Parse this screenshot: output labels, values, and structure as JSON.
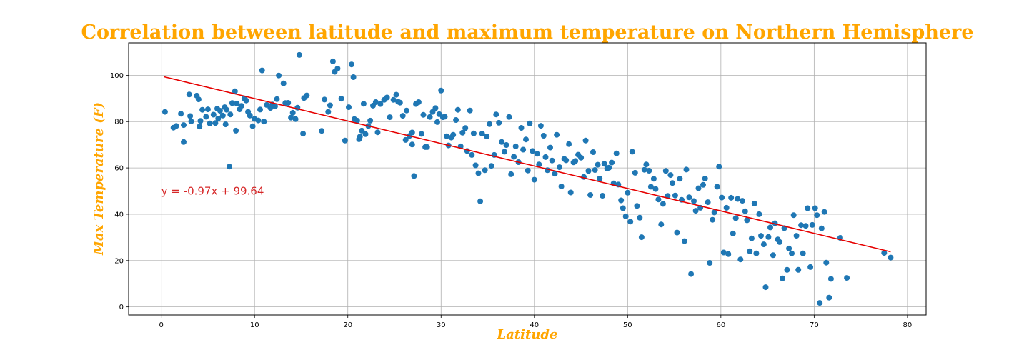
{
  "chart_data": {
    "type": "scatter",
    "title": "Correlation between latitude and maximum temperature on Northern Hemisphere",
    "xlabel": "Latitude",
    "ylabel": "Max Temperature (F)",
    "xlim": [
      -3.5,
      82
    ],
    "ylim": [
      -3.5,
      114
    ],
    "xticks": [
      0,
      10,
      20,
      30,
      40,
      50,
      60,
      70,
      80
    ],
    "yticks": [
      0,
      20,
      40,
      60,
      80,
      100
    ],
    "grid": true,
    "legend": "none",
    "regression": {
      "slope": -0.97,
      "intercept": 99.64,
      "x_range": [
        0.3,
        78.2
      ],
      "equation_label": "y = -0.97x + 99.64",
      "equation_anchor": [
        0,
        50
      ]
    },
    "colors": {
      "points": "#1f77b4",
      "line": "#e60000",
      "equation": "#d62728",
      "title": "#FFA500",
      "labels": "#FFA500"
    },
    "points": [
      [
        0.4,
        84.2
      ],
      [
        1.3,
        77.4
      ],
      [
        1.6,
        78.1
      ],
      [
        2.1,
        83.4
      ],
      [
        2.4,
        78.5
      ],
      [
        2.4,
        71.2
      ],
      [
        3.0,
        91.7
      ],
      [
        3.1,
        82.4
      ],
      [
        3.2,
        80.1
      ],
      [
        3.8,
        91.2
      ],
      [
        4.0,
        89.6
      ],
      [
        4.1,
        77.9
      ],
      [
        4.2,
        80.3
      ],
      [
        4.4,
        85.1
      ],
      [
        4.8,
        82.1
      ],
      [
        5.0,
        85.3
      ],
      [
        5.2,
        79.2
      ],
      [
        5.6,
        83.0
      ],
      [
        5.8,
        79.4
      ],
      [
        6.0,
        85.6
      ],
      [
        6.1,
        81.3
      ],
      [
        6.3,
        84.7
      ],
      [
        6.6,
        82.6
      ],
      [
        6.8,
        86.2
      ],
      [
        6.9,
        78.8
      ],
      [
        7.0,
        85.1
      ],
      [
        7.3,
        60.6
      ],
      [
        7.4,
        83.1
      ],
      [
        7.6,
        88.0
      ],
      [
        7.9,
        93.1
      ],
      [
        8.0,
        76.1
      ],
      [
        8.1,
        87.8
      ],
      [
        8.4,
        85.3
      ],
      [
        8.6,
        86.8
      ],
      [
        8.9,
        90.0
      ],
      [
        9.1,
        89.1
      ],
      [
        9.3,
        84.2
      ],
      [
        9.5,
        82.6
      ],
      [
        9.8,
        78.0
      ],
      [
        10.0,
        81.2
      ],
      [
        10.4,
        80.5
      ],
      [
        10.6,
        85.2
      ],
      [
        10.8,
        102.1
      ],
      [
        11.0,
        80.0
      ],
      [
        11.3,
        87.2
      ],
      [
        11.7,
        85.9
      ],
      [
        11.9,
        87.4
      ],
      [
        12.2,
        86.6
      ],
      [
        12.4,
        89.7
      ],
      [
        12.6,
        99.9
      ],
      [
        13.1,
        96.5
      ],
      [
        13.3,
        88.0
      ],
      [
        13.6,
        88.1
      ],
      [
        13.9,
        81.7
      ],
      [
        14.1,
        83.8
      ],
      [
        14.4,
        81.1
      ],
      [
        14.6,
        86.0
      ],
      [
        14.8,
        108.8
      ],
      [
        15.2,
        74.8
      ],
      [
        15.3,
        90.2
      ],
      [
        15.6,
        91.3
      ],
      [
        17.2,
        76.0
      ],
      [
        17.5,
        89.5
      ],
      [
        17.9,
        84.2
      ],
      [
        18.1,
        87.0
      ],
      [
        18.4,
        106.0
      ],
      [
        18.6,
        101.5
      ],
      [
        18.9,
        102.9
      ],
      [
        19.3,
        89.9
      ],
      [
        19.7,
        71.8
      ],
      [
        20.1,
        86.2
      ],
      [
        20.4,
        104.7
      ],
      [
        20.6,
        99.2
      ],
      [
        20.7,
        81.1
      ],
      [
        21.0,
        80.4
      ],
      [
        21.2,
        72.4
      ],
      [
        21.3,
        73.5
      ],
      [
        21.5,
        76.1
      ],
      [
        21.7,
        87.7
      ],
      [
        21.9,
        74.6
      ],
      [
        22.2,
        78.1
      ],
      [
        22.4,
        80.4
      ],
      [
        22.7,
        86.9
      ],
      [
        23.0,
        88.4
      ],
      [
        23.2,
        75.4
      ],
      [
        23.5,
        87.6
      ],
      [
        23.9,
        89.4
      ],
      [
        24.2,
        90.4
      ],
      [
        24.5,
        81.9
      ],
      [
        24.9,
        89.4
      ],
      [
        25.2,
        91.6
      ],
      [
        25.4,
        88.6
      ],
      [
        25.6,
        88.2
      ],
      [
        25.9,
        82.5
      ],
      [
        26.2,
        72.1
      ],
      [
        26.3,
        84.8
      ],
      [
        26.6,
        73.8
      ],
      [
        26.9,
        70.1
      ],
      [
        26.9,
        75.3
      ],
      [
        27.1,
        56.5
      ],
      [
        27.3,
        87.6
      ],
      [
        27.6,
        88.4
      ],
      [
        27.9,
        74.7
      ],
      [
        28.1,
        82.9
      ],
      [
        28.3,
        69.0
      ],
      [
        28.5,
        69.0
      ],
      [
        28.8,
        82.0
      ],
      [
        29.1,
        84.2
      ],
      [
        29.4,
        85.8
      ],
      [
        29.6,
        79.8
      ],
      [
        29.8,
        83.2
      ],
      [
        30.0,
        93.4
      ],
      [
        30.2,
        81.9
      ],
      [
        30.4,
        82.1
      ],
      [
        30.6,
        73.7
      ],
      [
        30.8,
        69.7
      ],
      [
        31.1,
        73.1
      ],
      [
        31.3,
        74.3
      ],
      [
        31.6,
        80.7
      ],
      [
        31.8,
        85.1
      ],
      [
        32.1,
        69.3
      ],
      [
        32.3,
        75.2
      ],
      [
        32.6,
        77.2
      ],
      [
        32.8,
        67.3
      ],
      [
        33.1,
        84.8
      ],
      [
        33.3,
        65.6
      ],
      [
        33.5,
        74.9
      ],
      [
        33.7,
        61.1
      ],
      [
        34.0,
        57.7
      ],
      [
        34.2,
        45.6
      ],
      [
        34.4,
        74.8
      ],
      [
        34.7,
        59.0
      ],
      [
        34.9,
        73.6
      ],
      [
        35.2,
        78.9
      ],
      [
        35.4,
        60.9
      ],
      [
        35.7,
        65.6
      ],
      [
        35.9,
        83.1
      ],
      [
        36.2,
        79.5
      ],
      [
        36.5,
        71.2
      ],
      [
        36.8,
        67.0
      ],
      [
        37.0,
        69.9
      ],
      [
        37.3,
        82.0
      ],
      [
        37.5,
        57.3
      ],
      [
        37.8,
        64.8
      ],
      [
        38.0,
        69.3
      ],
      [
        38.3,
        62.5
      ],
      [
        38.6,
        77.3
      ],
      [
        38.8,
        67.9
      ],
      [
        39.1,
        72.3
      ],
      [
        39.3,
        58.9
      ],
      [
        39.5,
        79.2
      ],
      [
        39.8,
        67.3
      ],
      [
        40.0,
        54.9
      ],
      [
        40.3,
        66.1
      ],
      [
        40.5,
        61.5
      ],
      [
        40.7,
        78.2
      ],
      [
        41.0,
        73.9
      ],
      [
        41.2,
        64.7
      ],
      [
        41.4,
        59.0
      ],
      [
        41.7,
        68.8
      ],
      [
        41.9,
        63.2
      ],
      [
        42.2,
        57.5
      ],
      [
        42.4,
        74.3
      ],
      [
        42.7,
        60.3
      ],
      [
        42.9,
        52.0
      ],
      [
        43.2,
        63.9
      ],
      [
        43.4,
        63.3
      ],
      [
        43.7,
        70.3
      ],
      [
        43.9,
        49.4
      ],
      [
        44.2,
        62.4
      ],
      [
        44.4,
        63.0
      ],
      [
        44.7,
        65.7
      ],
      [
        45.0,
        64.4
      ],
      [
        45.3,
        56.1
      ],
      [
        45.5,
        71.8
      ],
      [
        45.8,
        58.7
      ],
      [
        46.0,
        48.3
      ],
      [
        46.3,
        66.8
      ],
      [
        46.5,
        59.1
      ],
      [
        46.8,
        61.4
      ],
      [
        47.0,
        55.4
      ],
      [
        47.3,
        48.0
      ],
      [
        47.5,
        61.8
      ],
      [
        47.8,
        59.7
      ],
      [
        48.0,
        60.1
      ],
      [
        48.3,
        62.3
      ],
      [
        48.5,
        53.3
      ],
      [
        48.8,
        66.3
      ],
      [
        49.0,
        52.8
      ],
      [
        49.3,
        46.0
      ],
      [
        49.5,
        42.6
      ],
      [
        49.8,
        39.1
      ],
      [
        50.0,
        49.3
      ],
      [
        50.3,
        36.8
      ],
      [
        50.5,
        67.0
      ],
      [
        50.8,
        57.9
      ],
      [
        51.0,
        43.6
      ],
      [
        51.3,
        38.5
      ],
      [
        51.5,
        30.1
      ],
      [
        51.8,
        59.2
      ],
      [
        52.0,
        61.5
      ],
      [
        52.3,
        58.8
      ],
      [
        52.5,
        51.9
      ],
      [
        52.8,
        55.3
      ],
      [
        53.0,
        50.9
      ],
      [
        53.3,
        46.4
      ],
      [
        53.6,
        35.6
      ],
      [
        53.8,
        44.5
      ],
      [
        54.1,
        58.7
      ],
      [
        54.3,
        47.9
      ],
      [
        54.6,
        56.9
      ],
      [
        54.8,
        53.5
      ],
      [
        55.1,
        48.1
      ],
      [
        55.3,
        32.1
      ],
      [
        55.6,
        55.3
      ],
      [
        55.8,
        46.2
      ],
      [
        56.1,
        28.4
      ],
      [
        56.3,
        59.3
      ],
      [
        56.6,
        47.3
      ],
      [
        56.8,
        14.2
      ],
      [
        57.1,
        45.7
      ],
      [
        57.3,
        41.5
      ],
      [
        57.6,
        51.2
      ],
      [
        57.8,
        42.8
      ],
      [
        58.1,
        52.7
      ],
      [
        58.3,
        55.4
      ],
      [
        58.6,
        45.2
      ],
      [
        58.8,
        19.0
      ],
      [
        59.1,
        37.6
      ],
      [
        59.3,
        40.8
      ],
      [
        59.6,
        51.9
      ],
      [
        59.8,
        60.6
      ],
      [
        60.1,
        47.2
      ],
      [
        60.3,
        23.5
      ],
      [
        60.6,
        42.8
      ],
      [
        60.8,
        22.8
      ],
      [
        61.1,
        47.1
      ],
      [
        61.3,
        31.7
      ],
      [
        61.6,
        38.3
      ],
      [
        61.8,
        46.6
      ],
      [
        62.1,
        20.5
      ],
      [
        62.3,
        45.8
      ],
      [
        62.6,
        41.3
      ],
      [
        62.8,
        37.4
      ],
      [
        63.1,
        24.0
      ],
      [
        63.3,
        29.6
      ],
      [
        63.6,
        44.6
      ],
      [
        63.8,
        23.1
      ],
      [
        64.1,
        40.0
      ],
      [
        64.3,
        30.7
      ],
      [
        64.6,
        27.0
      ],
      [
        64.8,
        8.5
      ],
      [
        65.1,
        30.2
      ],
      [
        65.3,
        34.3
      ],
      [
        65.6,
        22.3
      ],
      [
        65.8,
        36.1
      ],
      [
        66.1,
        29.1
      ],
      [
        66.3,
        28.0
      ],
      [
        66.6,
        12.3
      ],
      [
        66.8,
        34.0
      ],
      [
        67.1,
        16.0
      ],
      [
        67.3,
        25.2
      ],
      [
        67.6,
        23.1
      ],
      [
        67.8,
        39.6
      ],
      [
        68.1,
        30.7
      ],
      [
        68.3,
        16.0
      ],
      [
        68.6,
        35.3
      ],
      [
        68.8,
        23.1
      ],
      [
        69.1,
        35.0
      ],
      [
        69.3,
        42.6
      ],
      [
        69.6,
        17.2
      ],
      [
        69.8,
        35.4
      ],
      [
        70.1,
        42.6
      ],
      [
        70.3,
        39.6
      ],
      [
        70.6,
        1.7
      ],
      [
        70.8,
        33.9
      ],
      [
        71.1,
        41.0
      ],
      [
        71.3,
        19.1
      ],
      [
        71.6,
        4.0
      ],
      [
        71.8,
        12.1
      ],
      [
        72.8,
        29.8
      ],
      [
        73.5,
        12.5
      ],
      [
        77.5,
        23.3
      ],
      [
        78.2,
        21.3
      ]
    ]
  }
}
